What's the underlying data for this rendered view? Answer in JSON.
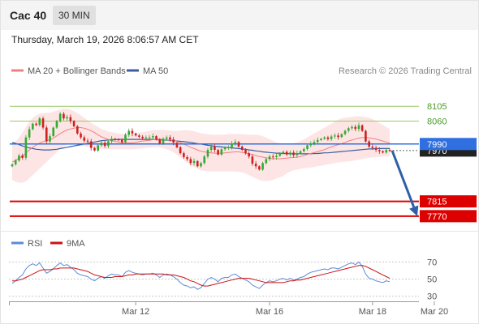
{
  "header": {
    "symbol": "Cac 40",
    "timeframe": "30 MIN"
  },
  "timestamp": "Thursday, March 19, 2026 8:06:57 AM CET",
  "colors": {
    "up": "#33aa33",
    "down": "#cc2222",
    "ma20": "#f08080",
    "ma50": "#3a5fa0",
    "bollinger_fill": "#fde0e0",
    "resistance": "#99cc66",
    "support": "#dd0000",
    "pivot": "#2f6fdf",
    "last_price": "#222222",
    "arrow": "#2e5fa8",
    "rsi": "#5a8ad6",
    "rsi_ma": "#cc1111"
  },
  "chart_data": [
    {
      "type": "candlestick",
      "legend": [
        {
          "label": "MA 20 + Bollinger Bands",
          "color": "#f08080"
        },
        {
          "label": "MA 50",
          "color": "#3a5fa0"
        }
      ],
      "credit": "Research © 2026 Trading Central",
      "ylim": [
        7740,
        8150
      ],
      "levels": [
        {
          "value": 8105,
          "label": "8105",
          "kind": "resistance"
        },
        {
          "value": 8060,
          "label": "8060",
          "kind": "resistance"
        },
        {
          "value": 7990,
          "label": "7990",
          "kind": "pivot"
        },
        {
          "value": 7970,
          "label": "7970",
          "kind": "last"
        },
        {
          "value": 7815,
          "label": "7815",
          "kind": "support"
        },
        {
          "value": 7770,
          "label": "7770",
          "kind": "support"
        }
      ],
      "forecast": {
        "from": 7970,
        "to": 7770,
        "direction": "down"
      },
      "x_ticks": [
        "Mar 12",
        "Mar 16",
        "Mar 18",
        "Mar 20"
      ],
      "close": [
        7928,
        7940,
        7955,
        7948,
        8010,
        8035,
        8052,
        8048,
        8068,
        8040,
        7998,
        8014,
        8040,
        8060,
        8082,
        8068,
        8072,
        8060,
        8044,
        8022,
        8010,
        8000,
        7998,
        7978,
        7970,
        7986,
        7994,
        7984,
        7998,
        8006,
        8004,
        8002,
        7995,
        8018,
        8030,
        8022,
        8016,
        8012,
        8008,
        8010,
        8010,
        8014,
        8004,
        7992,
        8006,
        8010,
        8004,
        7994,
        7980,
        7962,
        7950,
        7944,
        7932,
        7938,
        7922,
        7932,
        7952,
        7972,
        7982,
        7972,
        7958,
        7974,
        7978,
        7980,
        7992,
        7996,
        7982,
        7972,
        7962,
        7952,
        7930,
        7922,
        7912,
        7932,
        7944,
        7952,
        7950,
        7954,
        7962,
        7966,
        7958,
        7964,
        7956,
        7962,
        7968,
        7975,
        7986,
        7992,
        7996,
        8002,
        8006,
        8010,
        8005,
        8013,
        8016,
        8011,
        8020,
        8030,
        8038,
        8042,
        8036,
        8047,
        8030,
        7998,
        7982,
        7978,
        7972,
        7968,
        7964,
        7972,
        7970
      ],
      "ma20": [
        7935,
        7940,
        7947,
        7953,
        7962,
        7972,
        7980,
        7987,
        7993,
        7997,
        8000,
        8003,
        8008,
        8015,
        8022,
        8028,
        8033,
        8036,
        8038,
        8040,
        8040,
        8038,
        8035,
        8030,
        8025,
        8018,
        8012,
        8008,
        8003,
        8000,
        7998,
        7996,
        7994,
        7994,
        7994,
        7994,
        7995,
        7997,
        7999,
        8000,
        8001,
        8003,
        8004,
        8005,
        8004,
        8003,
        8002,
        8001,
        7998,
        7994,
        7990,
        7985,
        7980,
        7976,
        7972,
        7968,
        7966,
        7964,
        7963,
        7962,
        7962,
        7962,
        7963,
        7964,
        7965,
        7966,
        7966,
        7964,
        7962,
        7960,
        7958,
        7955,
        7952,
        7950,
        7948,
        7946,
        7945,
        7945,
        7945,
        7946,
        7947,
        7948,
        7949,
        7950,
        7952,
        7955,
        7958,
        7961,
        7964,
        7967,
        7970,
        7973,
        7977,
        7981,
        7985,
        7988,
        7991,
        7995,
        7999,
        8002,
        8005,
        8008,
        8010,
        8010,
        8009,
        8007,
        8005,
        8002,
        7999,
        7996,
        7993
      ],
      "ma50": [
        7995,
        7992,
        7988,
        7984,
        7981,
        7978,
        7976,
        7974,
        7973,
        7972,
        7972,
        7972,
        7973,
        7974,
        7976,
        7978,
        7980,
        7982,
        7984,
        7986,
        7988,
        7990,
        7992,
        7994,
        7996,
        7998,
        8000,
        8001,
        8002,
        8003,
        8003,
        8004,
        8004,
        8004,
        8004,
        8004,
        8004,
        8004,
        8004,
        8004,
        8004,
        8004,
        8003,
        8003,
        8002,
        8002,
        8001,
        8000,
        7999,
        7998,
        7997,
        7996,
        7995,
        7993,
        7991,
        7990,
        7988,
        7986,
        7985,
        7983,
        7982,
        7981,
        7980,
        7979,
        7978,
        7977,
        7976,
        7975,
        7974,
        7972,
        7971,
        7969,
        7968,
        7966,
        7965,
        7964,
        7963,
        7962,
        7962,
        7961,
        7961,
        7960,
        7960,
        7960,
        7960,
        7960,
        7960,
        7960,
        7961,
        7961,
        7962,
        7963,
        7963,
        7964,
        7965,
        7966,
        7967,
        7968,
        7969,
        7970,
        7971,
        7972,
        7973,
        7974,
        7975,
        7975,
        7976,
        7976,
        7976,
        7976,
        7976
      ],
      "boll_upper": [
        7990,
        7998,
        8010,
        8025,
        8042,
        8058,
        8070,
        8078,
        8082,
        8084,
        8085,
        8086,
        8088,
        8092,
        8096,
        8098,
        8098,
        8095,
        8090,
        8084,
        8078,
        8070,
        8062,
        8054,
        8048,
        8042,
        8036,
        8032,
        8028,
        8026,
        8024,
        8022,
        8021,
        8021,
        8021,
        8021,
        8022,
        8024,
        8026,
        8028,
        8030,
        8032,
        8033,
        8033,
        8033,
        8032,
        8031,
        8030,
        8030,
        8031,
        8032,
        8032,
        8031,
        8029,
        8026,
        8023,
        8021,
        8020,
        8019,
        8018,
        8018,
        8018,
        8019,
        8020,
        8021,
        8021,
        8021,
        8020,
        8019,
        8018,
        8018,
        8018,
        8017,
        8014,
        8010,
        8005,
        8000,
        7995,
        7992,
        7990,
        7989,
        7990,
        7992,
        7995,
        7999,
        8004,
        8010,
        8016,
        8022,
        8028,
        8034,
        8040,
        8046,
        8052,
        8058,
        8064,
        8068,
        8070,
        8072,
        8073,
        8074,
        8075,
        8074,
        8072,
        8070,
        8066,
        8060,
        8054,
        8048,
        8042,
        8036
      ],
      "boll_lower": [
        7880,
        7875,
        7872,
        7872,
        7876,
        7885,
        7895,
        7905,
        7915,
        7925,
        7935,
        7945,
        7955,
        7965,
        7975,
        7982,
        7988,
        7990,
        7990,
        7988,
        7985,
        7983,
        7982,
        7980,
        7978,
        7976,
        7975,
        7974,
        7974,
        7974,
        7974,
        7974,
        7974,
        7974,
        7974,
        7974,
        7975,
        7976,
        7977,
        7978,
        7979,
        7980,
        7980,
        7980,
        7977,
        7974,
        7970,
        7965,
        7958,
        7948,
        7940,
        7933,
        7926,
        7920,
        7914,
        7910,
        7908,
        7907,
        7906,
        7906,
        7906,
        7906,
        7906,
        7906,
        7906,
        7906,
        7905,
        7903,
        7900,
        7895,
        7890,
        7885,
        7880,
        7878,
        7877,
        7878,
        7880,
        7885,
        7888,
        7893,
        7900,
        7906,
        7910,
        7912,
        7914,
        7916,
        7917,
        7918,
        7920,
        7922,
        7924,
        7926,
        7928,
        7930,
        7932,
        7934,
        7935,
        7936,
        7937,
        7938,
        7940,
        7942,
        7944,
        7946,
        7948,
        7949,
        7950,
        7951,
        7952,
        7952,
        7952
      ]
    },
    {
      "type": "line",
      "legend": [
        {
          "label": "RSI",
          "color": "#5a8ad6"
        },
        {
          "label": "9MA",
          "color": "#cc1111"
        }
      ],
      "ylim": [
        25,
        80
      ],
      "y_ticks": [
        70,
        50,
        30
      ],
      "x_ticks": [
        "Mar 12",
        "Mar 16",
        "Mar 18",
        "Mar 20"
      ],
      "rsi": [
        45,
        48,
        52,
        55,
        62,
        66,
        68,
        66,
        69,
        63,
        57,
        59,
        62,
        66,
        69,
        66,
        67,
        64,
        61,
        57,
        55,
        54,
        53,
        50,
        48,
        51,
        53,
        51,
        54,
        56,
        55,
        55,
        53,
        58,
        60,
        58,
        57,
        56,
        55,
        56,
        56,
        57,
        55,
        52,
        55,
        56,
        55,
        53,
        50,
        46,
        43,
        42,
        40,
        41,
        38,
        40,
        45,
        50,
        52,
        50,
        47,
        51,
        52,
        52,
        55,
        56,
        53,
        51,
        49,
        47,
        43,
        41,
        39,
        43,
        46,
        48,
        47,
        48,
        50,
        51,
        49,
        51,
        49,
        50,
        52,
        53,
        56,
        58,
        59,
        60,
        61,
        62,
        61,
        63,
        63,
        62,
        64,
        66,
        68,
        69,
        67,
        70,
        65,
        56,
        51,
        50,
        48,
        47,
        46,
        48,
        47
      ],
      "rsi_ma": [
        48,
        48,
        49,
        50,
        52,
        54,
        56,
        58,
        60,
        61,
        61,
        61,
        62,
        62,
        63,
        63,
        63,
        63,
        63,
        62,
        61,
        60,
        59,
        57,
        55,
        54,
        53,
        52,
        52,
        52,
        53,
        53,
        53,
        54,
        55,
        55,
        56,
        56,
        56,
        56,
        56,
        56,
        56,
        56,
        56,
        55,
        55,
        55,
        54,
        53,
        52,
        50,
        48,
        47,
        45,
        43,
        42,
        42,
        43,
        44,
        45,
        46,
        47,
        48,
        49,
        50,
        51,
        51,
        51,
        51,
        50,
        49,
        48,
        47,
        46,
        46,
        46,
        46,
        46,
        46,
        47,
        48,
        48,
        49,
        49,
        50,
        51,
        52,
        53,
        54,
        55,
        56,
        57,
        58,
        59,
        60,
        61,
        62,
        63,
        64,
        65,
        66,
        66,
        65,
        63,
        61,
        59,
        57,
        55,
        53,
        51
      ]
    }
  ]
}
